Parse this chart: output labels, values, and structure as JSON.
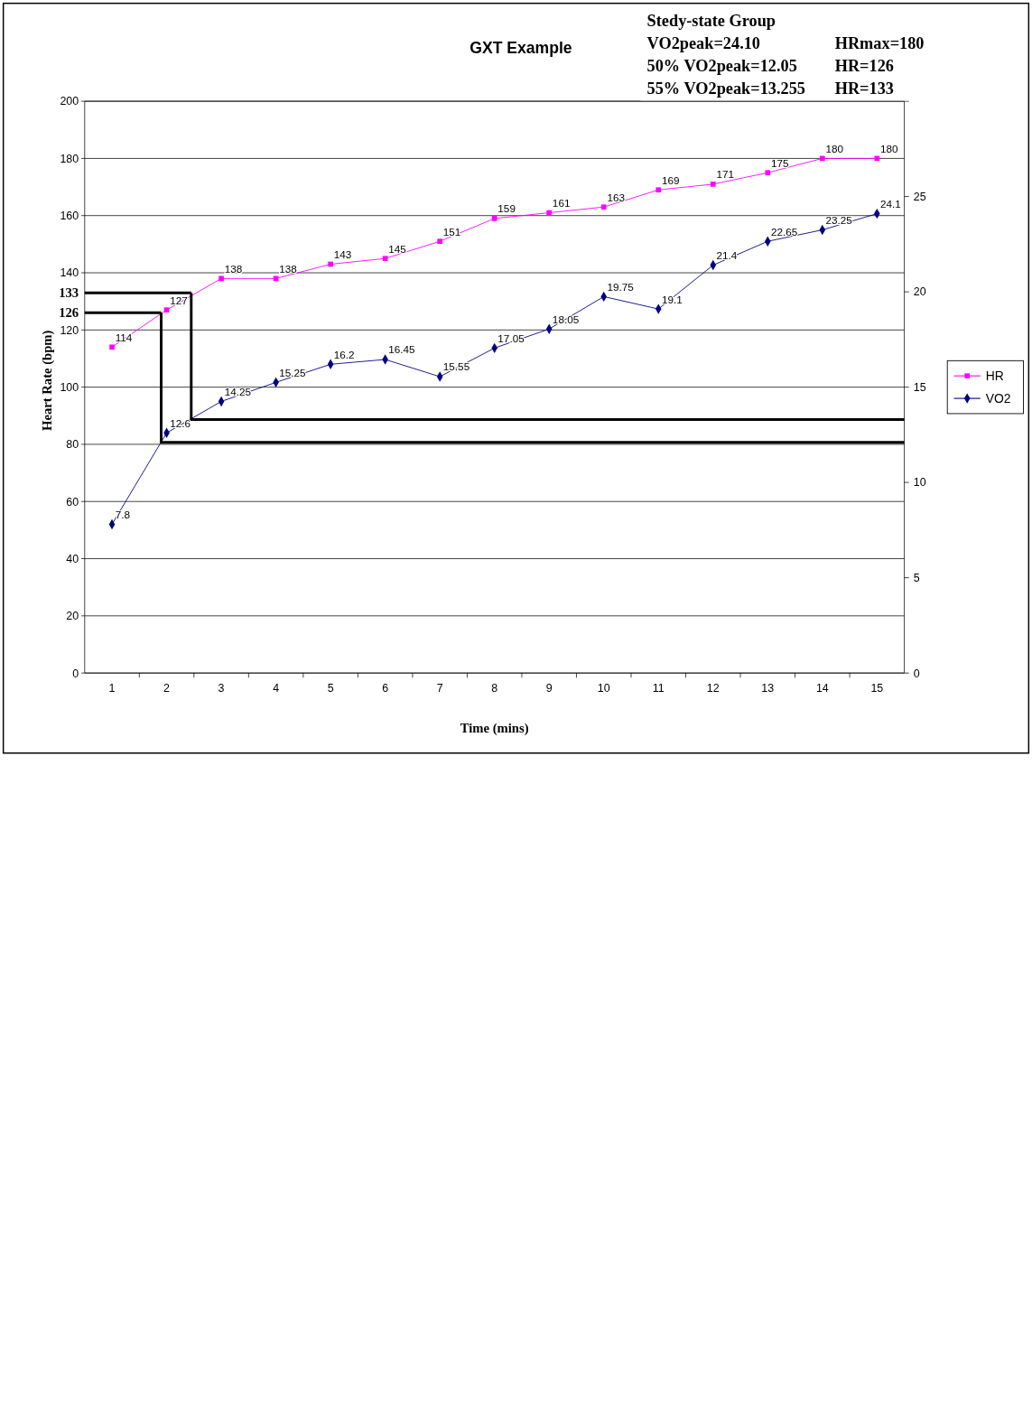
{
  "chart_data": {
    "type": "line",
    "title": "GXT Example",
    "xlabel": "Time (mins)",
    "ylabel": "Heart Rate (bpm)",
    "x": [
      1,
      2,
      3,
      4,
      5,
      6,
      7,
      8,
      9,
      10,
      11,
      12,
      13,
      14,
      15
    ],
    "xlim": [
      0.5,
      15.5
    ],
    "xticks": [
      1,
      2,
      3,
      4,
      5,
      6,
      7,
      8,
      9,
      10,
      11,
      12,
      13,
      14,
      15,
      {
        "value": 1.5,
        "label": null
      },
      {
        "value": 2.5,
        "label": null
      },
      {
        "value": 3.5,
        "label": null
      },
      {
        "value": 4.5,
        "label": null
      },
      {
        "value": 5.5,
        "label": null
      },
      {
        "value": 6.5,
        "label": null
      },
      {
        "value": 7.5,
        "label": null
      },
      {
        "value": 8.5,
        "label": null
      },
      {
        "value": 9.5,
        "label": null
      },
      {
        "value": 10.5,
        "label": null
      },
      {
        "value": 11.5,
        "label": null
      },
      {
        "value": 12.5,
        "label": null
      },
      {
        "value": 13.5,
        "label": null
      },
      {
        "value": 14.5,
        "label": null
      }
    ],
    "ylim": [
      0,
      200
    ],
    "yticks": [
      0,
      20,
      40,
      60,
      80,
      100,
      120,
      140,
      160,
      180,
      200,
      {
        "value": 133,
        "label": "133"
      },
      {
        "value": 126,
        "label": "126"
      }
    ],
    "y2lim": [
      0,
      30
    ],
    "y2ticks": [
      0,
      5,
      10,
      15,
      20,
      25,
      {
        "value": 30,
        "label": null
      }
    ],
    "grid": "y",
    "legend": "right",
    "series": [
      {
        "name": "HR",
        "color": "#ff00ff",
        "marker": "square",
        "values": [
          114,
          127,
          138,
          138,
          143,
          145,
          151,
          159,
          161,
          163,
          169,
          171,
          175,
          180,
          180
        ],
        "value_labels": [
          "114",
          "127",
          "138",
          "138",
          "143",
          "145",
          "151",
          "159",
          "161",
          "163",
          "169",
          "171",
          "175",
          "180",
          "180"
        ]
      },
      {
        "name": "VO2",
        "color": "#000080",
        "marker": "diamond",
        "axis": "y2",
        "values": [
          7.8,
          12.6,
          14.25,
          15.25,
          16.2,
          16.45,
          15.55,
          17.05,
          18.05,
          19.75,
          19.1,
          21.4,
          22.65,
          23.25,
          24.1
        ],
        "value_labels": [
          "7.8",
          "12.6",
          "14.25",
          "15.25",
          "16.2",
          "16.45",
          "15.55",
          "17.05",
          "18.05",
          "19.75",
          "19.1",
          "21.4",
          "22.65",
          "23.25",
          "24.1"
        ]
      },
      {
        "color": "#000000",
        "marker": "none",
        "x": [
          0.5,
          2.45
        ],
        "values": [
          133,
          133
        ]
      },
      {
        "color": "#000000",
        "marker": "none",
        "axis": "y2",
        "x": [
          2.45,
          2.45,
          15.5
        ],
        "values": [
          19.95,
          13.3,
          13.3
        ]
      },
      {
        "color": "#000000",
        "marker": "none",
        "x": [
          0.5,
          1.9
        ],
        "values": [
          126,
          126
        ]
      },
      {
        "color": "#000000",
        "marker": "none",
        "axis": "y2",
        "x": [
          1.9,
          1.9,
          15.5
        ],
        "values": [
          18.9,
          12.1,
          12.1
        ]
      }
    ],
    "annotations": [
      "Stedy-state Group",
      "VO2peak=24.10",
      "50% VO2peak=12.05",
      "55% VO2peak=13.255",
      "HRmax=180",
      "HR=126",
      "HR=133"
    ]
  }
}
